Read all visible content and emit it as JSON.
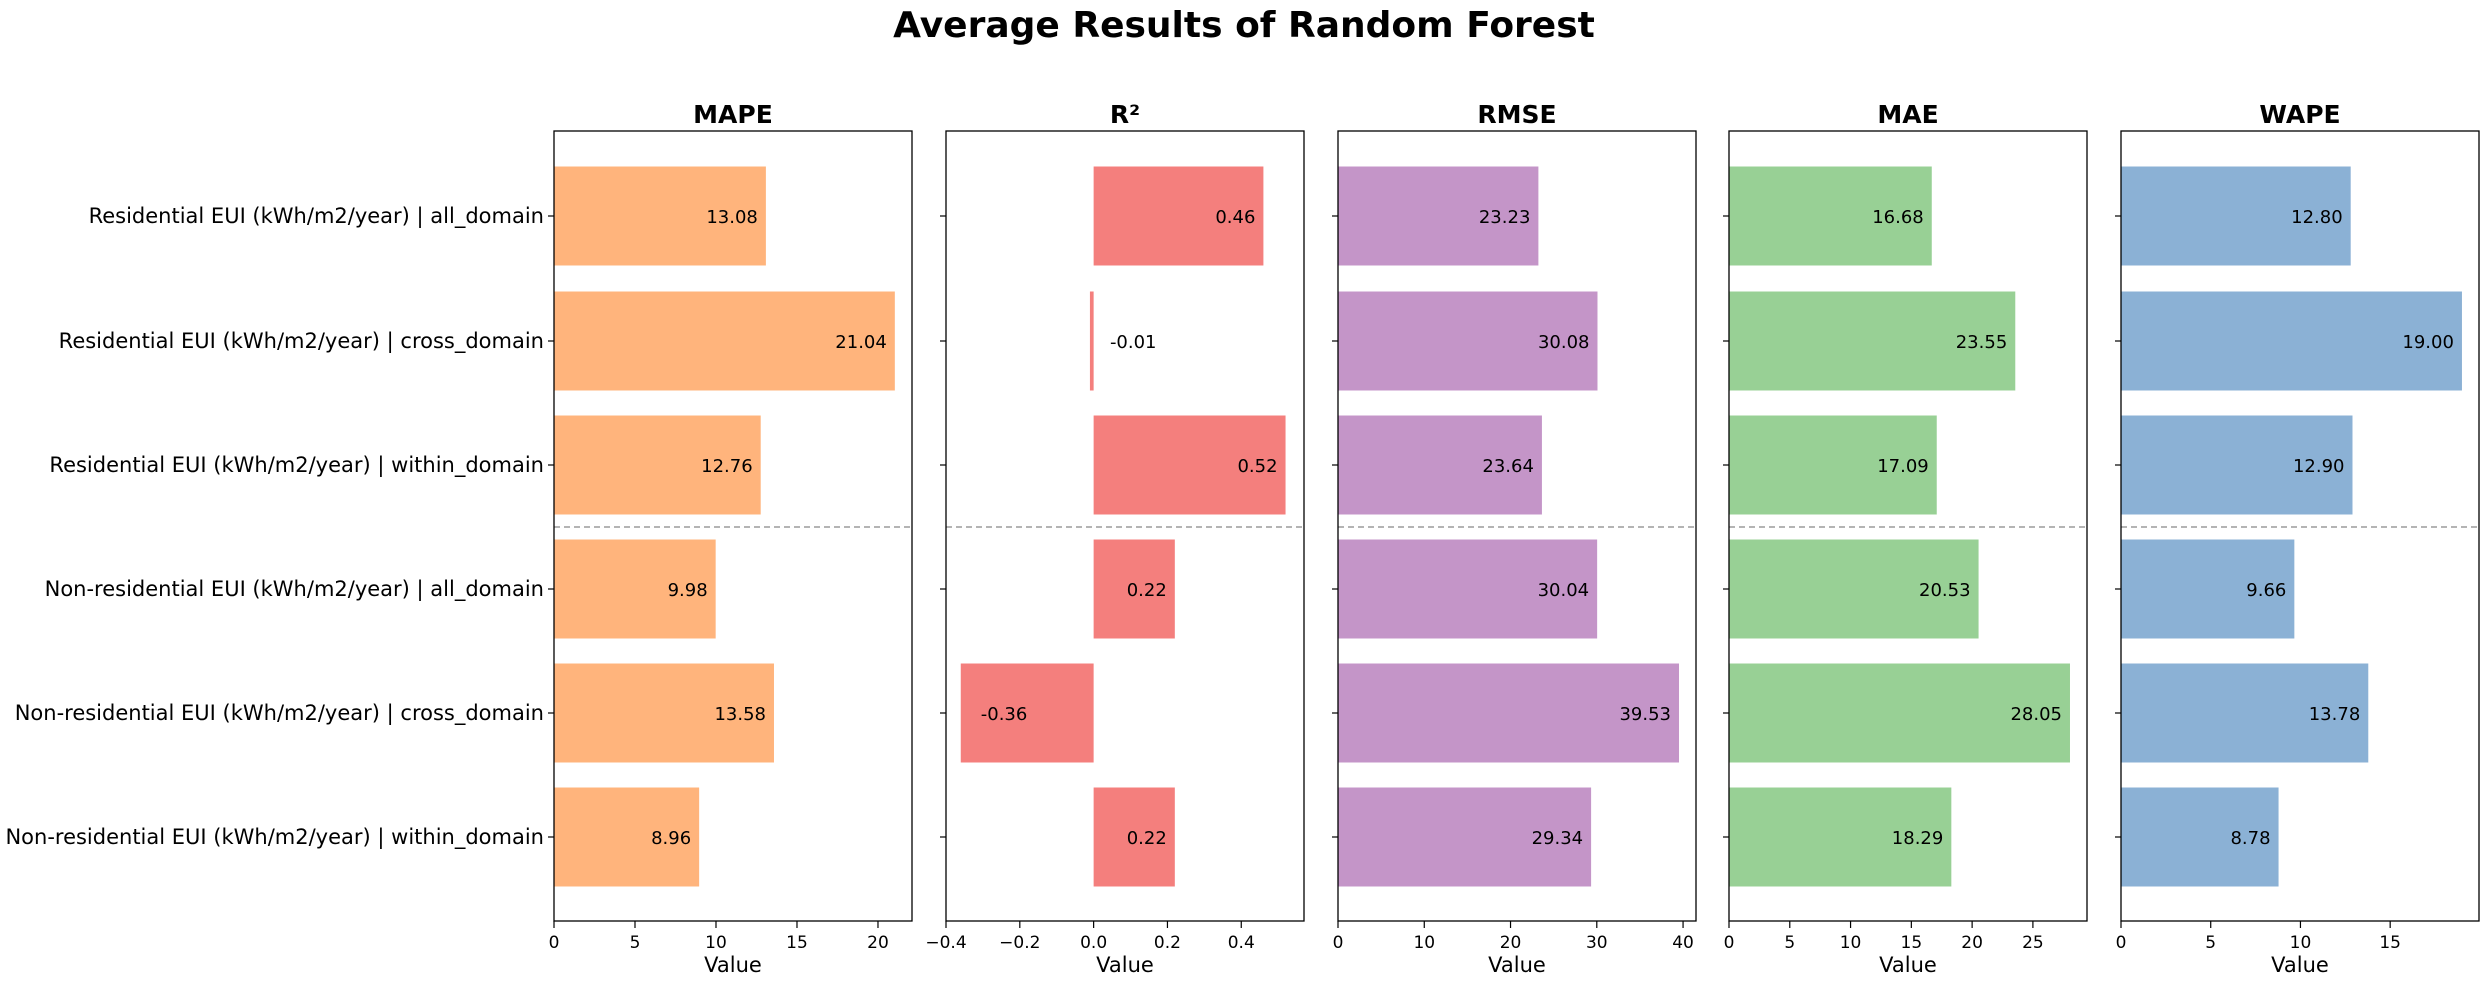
{
  "chart_data": {
    "type": "bar",
    "orientation": "horizontal",
    "title": "Average Results of Random Forest",
    "categories": [
      "Residential EUI (kWh/m2/year) | all_domain",
      "Residential EUI (kWh/m2/year) | cross_domain",
      "Residential EUI (kWh/m2/year) | within_domain",
      "Non-residential EUI (kWh/m2/year) | all_domain",
      "Non-residential EUI (kWh/m2/year) | cross_domain",
      "Non-residential EUI (kWh/m2/year) | within_domain"
    ],
    "panels": [
      {
        "title": "MAPE",
        "xlabel": "Value",
        "color": "#FFB47C",
        "xlim": [
          0,
          22.1
        ],
        "xticks": [
          0,
          5,
          10,
          15,
          20
        ],
        "values": [
          13.08,
          21.04,
          12.76,
          9.98,
          13.58,
          8.96
        ],
        "value_labels": [
          "13.08",
          "21.04",
          "12.76",
          "9.98",
          "13.58",
          "8.96"
        ]
      },
      {
        "title": "R²",
        "xlabel": "Value",
        "color": "#F47F7D",
        "xlim": [
          -0.4,
          0.57
        ],
        "xticks": [
          -0.4,
          -0.2,
          0.0,
          0.2,
          0.4
        ],
        "xtick_labels": [
          "−0.4",
          "−0.2",
          "0.0",
          "0.2",
          "0.4"
        ],
        "values": [
          0.46,
          -0.01,
          0.52,
          0.22,
          -0.36,
          0.22
        ],
        "value_labels": [
          "0.46",
          "-0.01",
          "0.52",
          "0.22",
          "-0.36",
          "0.22"
        ]
      },
      {
        "title": "RMSE",
        "xlabel": "Value",
        "color": "#C495C8",
        "xlim": [
          0,
          41.5
        ],
        "xticks": [
          0,
          10,
          20,
          30,
          40
        ],
        "values": [
          23.23,
          30.08,
          23.64,
          30.04,
          39.53,
          29.34
        ],
        "value_labels": [
          "23.23",
          "30.08",
          "23.64",
          "30.04",
          "39.53",
          "29.34"
        ]
      },
      {
        "title": "MAE",
        "xlabel": "Value",
        "color": "#98D095",
        "xlim": [
          0,
          29.45
        ],
        "xticks": [
          0,
          5,
          10,
          15,
          20,
          25
        ],
        "values": [
          16.68,
          23.55,
          17.09,
          20.53,
          28.05,
          18.29
        ],
        "value_labels": [
          "16.68",
          "23.55",
          "17.09",
          "20.53",
          "28.05",
          "18.29"
        ]
      },
      {
        "title": "WAPE",
        "xlabel": "Value",
        "color": "#8BB1D5",
        "xlim": [
          0,
          19.95
        ],
        "xticks": [
          0,
          5,
          10,
          15
        ],
        "values": [
          12.8,
          19.0,
          12.9,
          9.66,
          13.78,
          8.78
        ],
        "value_labels": [
          "12.80",
          "19.00",
          "12.90",
          "9.66",
          "13.78",
          "8.78"
        ]
      }
    ],
    "separator": "dashed line between Residential and Non-residential groups",
    "grid": false,
    "legend": "none"
  }
}
